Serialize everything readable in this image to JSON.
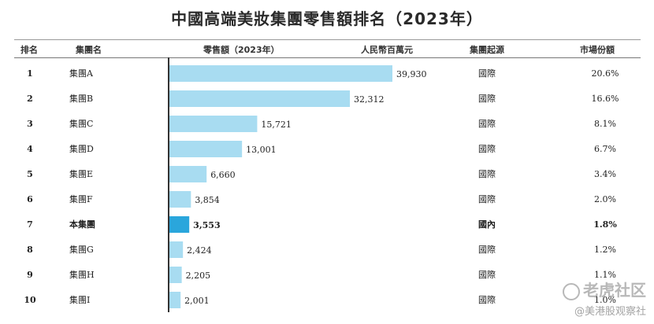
{
  "title": "中國高端美妝集團零售額排名（2023年）",
  "headers": {
    "rank": "排名",
    "group": "集團名",
    "sales": "零售額（2023年）",
    "unit": "人民幣百萬元",
    "origin": "集團起源",
    "share": "市場份額"
  },
  "rows": [
    {
      "rank": "1",
      "group": "集團A",
      "origin": "國際",
      "share": "20.6%",
      "value_label": "39,930",
      "highlight": false
    },
    {
      "rank": "2",
      "group": "集團B",
      "origin": "國際",
      "share": "16.6%",
      "value_label": "32,312",
      "highlight": false
    },
    {
      "rank": "3",
      "group": "集團C",
      "origin": "國際",
      "share": "8.1%",
      "value_label": "15,721",
      "highlight": false
    },
    {
      "rank": "4",
      "group": "集團D",
      "origin": "國際",
      "share": "6.7%",
      "value_label": "13,001",
      "highlight": false
    },
    {
      "rank": "5",
      "group": "集團E",
      "origin": "國際",
      "share": "3.4%",
      "value_label": "6,660",
      "highlight": false
    },
    {
      "rank": "6",
      "group": "集團F",
      "origin": "國際",
      "share": "2.0%",
      "value_label": "3,854",
      "highlight": false
    },
    {
      "rank": "7",
      "group": "本集團",
      "origin": "國內",
      "share": "1.8%",
      "value_label": "3,553",
      "highlight": true
    },
    {
      "rank": "8",
      "group": "集團G",
      "origin": "國際",
      "share": "1.2%",
      "value_label": "2,424",
      "highlight": false
    },
    {
      "rank": "9",
      "group": "集團H",
      "origin": "國際",
      "share": "1.1%",
      "value_label": "2,205",
      "highlight": false
    },
    {
      "rank": "10",
      "group": "集團I",
      "origin": "國際",
      "share": "1.0%",
      "value_label": "2,001",
      "highlight": false
    }
  ],
  "chart_data": {
    "type": "bar",
    "orientation": "horizontal",
    "categories": [
      "集團A",
      "集團B",
      "集團C",
      "集團D",
      "集團E",
      "集團F",
      "本集團",
      "集團G",
      "集團H",
      "集團I"
    ],
    "values": [
      39930,
      32312,
      15721,
      13001,
      6660,
      3854,
      3553,
      2424,
      2205,
      2001
    ],
    "title": "中國高端美妝集團零售額排名（2023年）",
    "xlabel": "零售額（2023年）",
    "unit": "人民幣百萬元",
    "xlim": [
      0,
      45000
    ],
    "grid": false,
    "colors": {
      "default": "#a8dcf1",
      "highlight": "#2aa6dc"
    }
  },
  "watermark": {
    "line1": "老虎社区",
    "line2": "@美港股观察社"
  }
}
